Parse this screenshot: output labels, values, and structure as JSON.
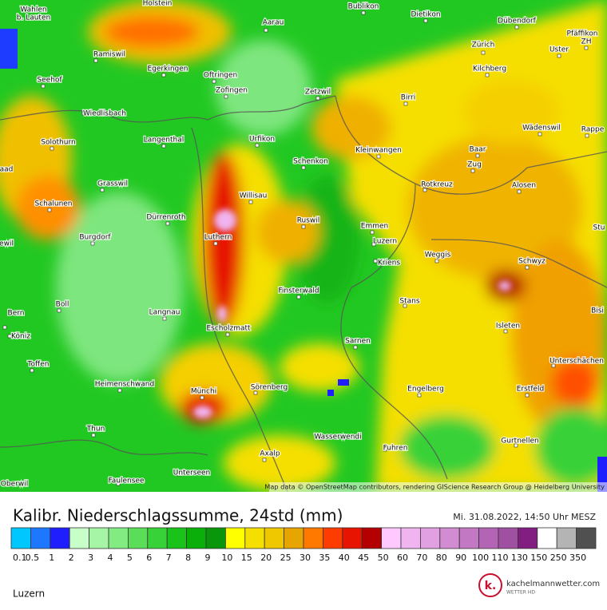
{
  "map": {
    "places": [
      "Wahlen",
      "b. Lauten",
      "Holstein",
      "Aarau",
      "Bublikon",
      "Dietikon",
      "Dübendorf",
      "Pfäffikon",
      "ZH",
      "Ramiswil",
      "Egerkingen",
      "Oftringen",
      "Zofingen",
      "Zürich",
      "Kilchberg",
      "Uster",
      "Seehof",
      "Zetzwil",
      "Birri",
      "Wiedlisbach",
      "Langenthal",
      "Urfikon",
      "Wädenswil",
      "Rappe",
      "Solothurn",
      "Kleinwangen",
      "Baar",
      "Zug",
      "Schenkon",
      "aad",
      "Grasswil",
      "Rotkreuz",
      "Alosen",
      "Willisau",
      "Schalunen",
      "Dürrenroth",
      "Ruswil",
      "Emmen",
      "Burgdorf",
      "Luthern",
      "Luzern",
      "ewil",
      "Weggis",
      "Kriens",
      "Schwyz",
      "Stu",
      "Finsterwald",
      "Stans",
      "Bern",
      "Boll",
      "Langnau",
      "Bisi",
      "Köniz",
      "Escholzmatt",
      "Isleten",
      "Sarnen",
      "Toffen",
      "Unterschächen",
      "Heimenschwand",
      "Sörenberg",
      "Engelberg",
      "Erstfeld",
      "Münchi",
      "Thun",
      "Wasserwendi",
      "Gurtnellen",
      "Fuhren",
      "Axalp",
      "Unterseen",
      "Faulensee",
      "Oberwil"
    ],
    "attribution": "Map data © OpenStreetMap contributors, rendering GIScience Research Group @ Heidelberg University"
  },
  "footer": {
    "title": "Kalibr. Niederschlagssumme, 24std (mm)",
    "timestamp": "Mi. 31.08.2022, 14:50 Uhr MESZ",
    "legend": {
      "labels": [
        "0.1",
        "0.5",
        "1",
        "2",
        "3",
        "4",
        "5",
        "6",
        "7",
        "8",
        "9",
        "10",
        "15",
        "20",
        "25",
        "30",
        "35",
        "40",
        "45",
        "50",
        "60",
        "70",
        "80",
        "90",
        "100",
        "110",
        "130",
        "150",
        "250",
        "350"
      ],
      "colors": [
        "#00c8ff",
        "#1e78ff",
        "#1e1eff",
        "#c8ffc8",
        "#a6f5a6",
        "#82eb82",
        "#5ade5a",
        "#37d237",
        "#19c319",
        "#0aaf0a",
        "#0a960a",
        "#ffff00",
        "#f5df00",
        "#f0c800",
        "#e6a500",
        "#ff7800",
        "#ff3c00",
        "#e61400",
        "#b40000",
        "#ffc8ff",
        "#f0b4f0",
        "#e1a0e1",
        "#d28cd2",
        "#c378c3",
        "#b464b4",
        "#a050a0",
        "#821e82",
        "#ffffff",
        "#b4b4b4",
        "#505050"
      ]
    },
    "region": "Luzern",
    "logo": {
      "mark": "k.",
      "name": "kachelmannwetter.com",
      "tagline": "WETTER HD"
    }
  }
}
